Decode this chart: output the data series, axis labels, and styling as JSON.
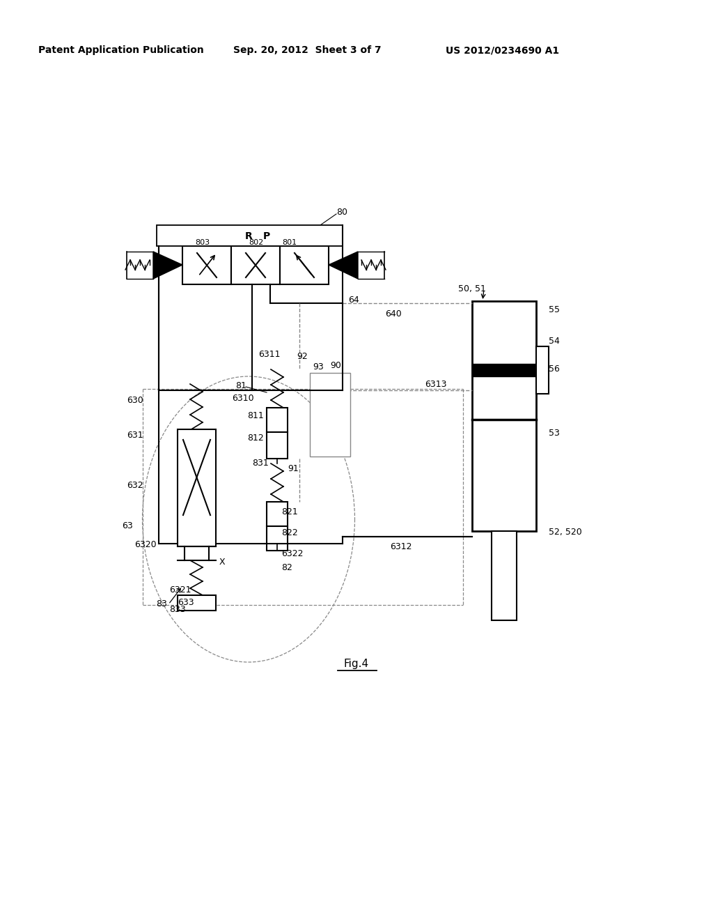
{
  "title": "Fig.4",
  "header_left": "Patent Application Publication",
  "header_center": "Sep. 20, 2012  Sheet 3 of 7",
  "header_right": "US 2012/0234690 A1",
  "bg_color": "#ffffff",
  "line_color": "#000000",
  "gray_line": "#888888"
}
